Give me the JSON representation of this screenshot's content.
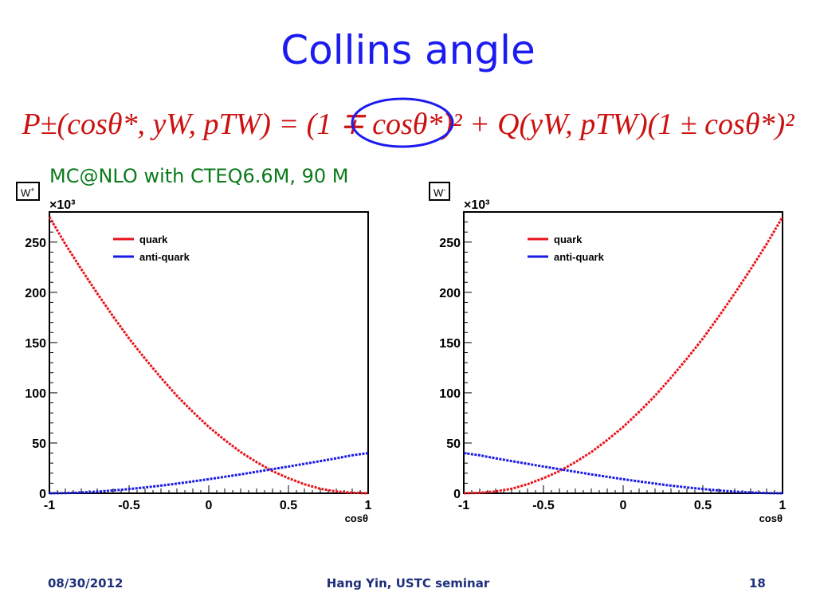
{
  "slide": {
    "title": "Collins angle",
    "subtitle": "MC@NLO with CTEQ6.6M, 90 M",
    "footer_date": "08/30/2012",
    "footer_center": "Hang Yin, USTC seminar",
    "page_number": "18"
  },
  "formula": {
    "lhs": "P±(cosθ*, yW, pTW) = (1 ∓ cosθ*)² + Q(yW, pTW)(1 ± cosθ*)²",
    "color": "#cc1111",
    "highlight_color": "#1b1bf0"
  },
  "chart_data": [
    {
      "type": "line",
      "tag": "W",
      "tag_sup": "+",
      "xlabel": "cosθ",
      "ylabel": "",
      "y_multiplier": "×10³",
      "xlim": [
        -1,
        1
      ],
      "ylim": [
        0,
        280
      ],
      "xticks": [
        "-1",
        "-0.5",
        "0",
        "0.5",
        "1"
      ],
      "yticks": [
        "0",
        "50",
        "100",
        "150",
        "200",
        "250"
      ],
      "legend_position": "top-right",
      "series": [
        {
          "name": "quark",
          "color": "#e8141b",
          "x": [
            -1,
            -0.9,
            -0.8,
            -0.7,
            -0.6,
            -0.5,
            -0.4,
            -0.3,
            -0.2,
            -0.1,
            0,
            0.1,
            0.2,
            0.3,
            0.4,
            0.5,
            0.6,
            0.7,
            0.8,
            0.9,
            1
          ],
          "values": [
            275,
            248,
            223,
            199,
            176,
            154,
            134,
            115,
            97,
            81,
            66,
            53,
            41,
            31,
            22,
            15,
            9,
            4.5,
            1.8,
            0.5,
            0
          ]
        },
        {
          "name": "anti-quark",
          "color": "#1a1ae6",
          "x": [
            -1,
            -0.9,
            -0.8,
            -0.7,
            -0.6,
            -0.5,
            -0.4,
            -0.3,
            -0.2,
            -0.1,
            0,
            0.1,
            0.2,
            0.3,
            0.4,
            0.5,
            0.6,
            0.7,
            0.8,
            0.9,
            1
          ],
          "values": [
            0,
            0.2,
            0.8,
            1.6,
            2.8,
            4.2,
            5.8,
            7.6,
            9.6,
            11.8,
            14,
            16.4,
            18.8,
            21.4,
            24,
            26.6,
            29.3,
            32,
            34.8,
            37.8,
            40
          ]
        }
      ]
    },
    {
      "type": "line",
      "tag": "W",
      "tag_sup": "-",
      "xlabel": "cosθ",
      "ylabel": "",
      "y_multiplier": "×10³",
      "xlim": [
        -1,
        1
      ],
      "ylim": [
        0,
        280
      ],
      "xticks": [
        "-1",
        "-0.5",
        "0",
        "0.5",
        "1"
      ],
      "yticks": [
        "0",
        "50",
        "100",
        "150",
        "200",
        "250"
      ],
      "legend_position": "top-right",
      "series": [
        {
          "name": "quark",
          "color": "#e8141b",
          "x": [
            -1,
            -0.9,
            -0.8,
            -0.7,
            -0.6,
            -0.5,
            -0.4,
            -0.3,
            -0.2,
            -0.1,
            0,
            0.1,
            0.2,
            0.3,
            0.4,
            0.5,
            0.6,
            0.7,
            0.8,
            0.9,
            1
          ],
          "values": [
            0,
            0.5,
            1.8,
            4.5,
            9,
            15,
            22,
            31,
            41,
            53,
            66,
            81,
            97,
            115,
            134,
            154,
            176,
            199,
            223,
            248,
            275
          ]
        },
        {
          "name": "anti-quark",
          "color": "#1a1ae6",
          "x": [
            -1,
            -0.9,
            -0.8,
            -0.7,
            -0.6,
            -0.5,
            -0.4,
            -0.3,
            -0.2,
            -0.1,
            0,
            0.1,
            0.2,
            0.3,
            0.4,
            0.5,
            0.6,
            0.7,
            0.8,
            0.9,
            1
          ],
          "values": [
            40,
            37.8,
            34.8,
            32,
            29.3,
            26.6,
            24,
            21.4,
            18.8,
            16.4,
            14,
            11.8,
            9.6,
            7.6,
            5.8,
            4.2,
            2.8,
            1.6,
            0.8,
            0.2,
            0
          ]
        }
      ]
    }
  ]
}
